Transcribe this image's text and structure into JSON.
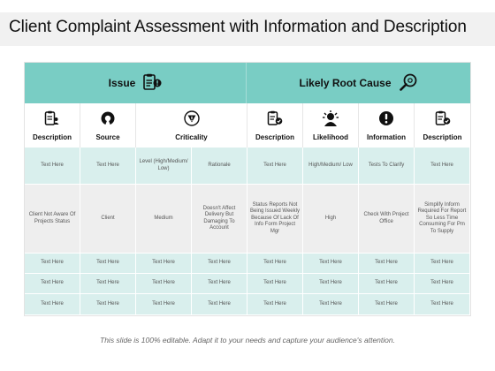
{
  "title": "Client Complaint Assessment with Information and Description",
  "groups": {
    "issue": "Issue",
    "root_cause": "Likely Root Cause"
  },
  "columns": [
    "Description",
    "Source",
    "Criticality",
    "Description",
    "Likelihood",
    "Information",
    "Description"
  ],
  "rows": [
    [
      "Text Here",
      "Text Here",
      "Level (High/Medium/ Low)",
      "Rationale",
      "Text Here",
      "High/Medium/ Low",
      "Tests To Clarify",
      "Text Here"
    ],
    [
      "Client Not Aware Of Projects Status",
      "Client",
      "Medium",
      "Doesn't Affect Delivery But Damaging To Account",
      "Status Reports Not Being Issued Weekly Because Of Lack Of Info Form Project Mgr",
      "High",
      "Check With Project Office",
      "Simplify Inform Required For Report So Less Time Consuming For Pm To Supply"
    ],
    [
      "Text Here",
      "Text Here",
      "Text Here",
      "Text Here",
      "Text Here",
      "Text Here",
      "Text Here",
      "Text Here"
    ],
    [
      "Text Here",
      "Text Here",
      "Text Here",
      "Text Here",
      "Text Here",
      "Text Here",
      "Text Here",
      "Text Here"
    ],
    [
      "Text Here",
      "Text Here",
      "Text Here",
      "Text Here",
      "Text Here",
      "Text Here",
      "Text Here",
      "Text Here"
    ]
  ],
  "footer": "This slide is 100% editable. Adapt it to your needs and capture your audience's attention.",
  "colors": {
    "header_teal": "#79cdc4",
    "cell_teal": "#d9efed",
    "cell_grey": "#eeeeee"
  },
  "icons": {
    "issue": "clipboard-alert-icon",
    "root_cause": "magnifier-icon",
    "columns": [
      "clipboard-person-icon",
      "target-icon",
      "warning-triangle-icon",
      "clipboard-check-icon",
      "head-gears-icon",
      "exclamation-circle-icon",
      "clipboard-check-icon"
    ]
  }
}
